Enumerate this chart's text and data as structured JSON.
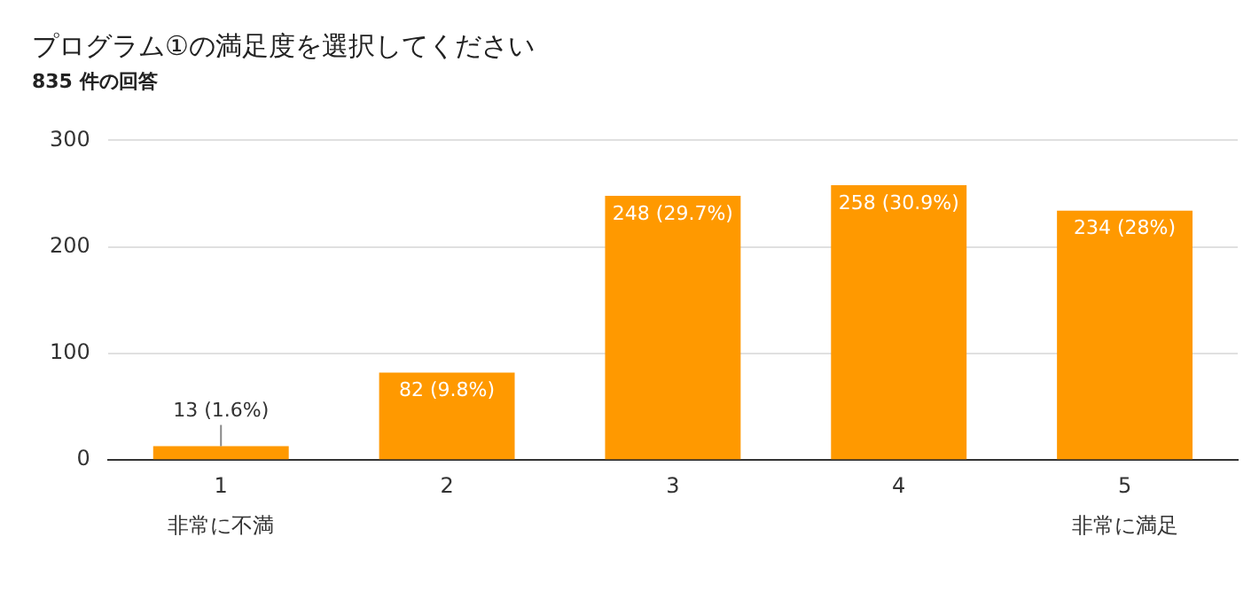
{
  "chart_data": {
    "type": "bar",
    "title": "プログラム①の満足度を選択してください",
    "subtitle": "835 件の回答",
    "categories": [
      "1",
      "2",
      "3",
      "4",
      "5"
    ],
    "values": [
      13,
      82,
      248,
      258,
      234
    ],
    "color": "#ff9900",
    "value_labels": [
      "13 (1.6%)",
      "82 (9.8%)",
      "248 (29.7%)",
      "258 (30.9%)",
      "234 (28%)"
    ],
    "annotations": [
      "非常に不満",
      "非常に満足"
    ],
    "ylim": [
      0,
      300
    ],
    "yticks": [
      0,
      100,
      200,
      300
    ],
    "grid": "y",
    "legend": false
  }
}
